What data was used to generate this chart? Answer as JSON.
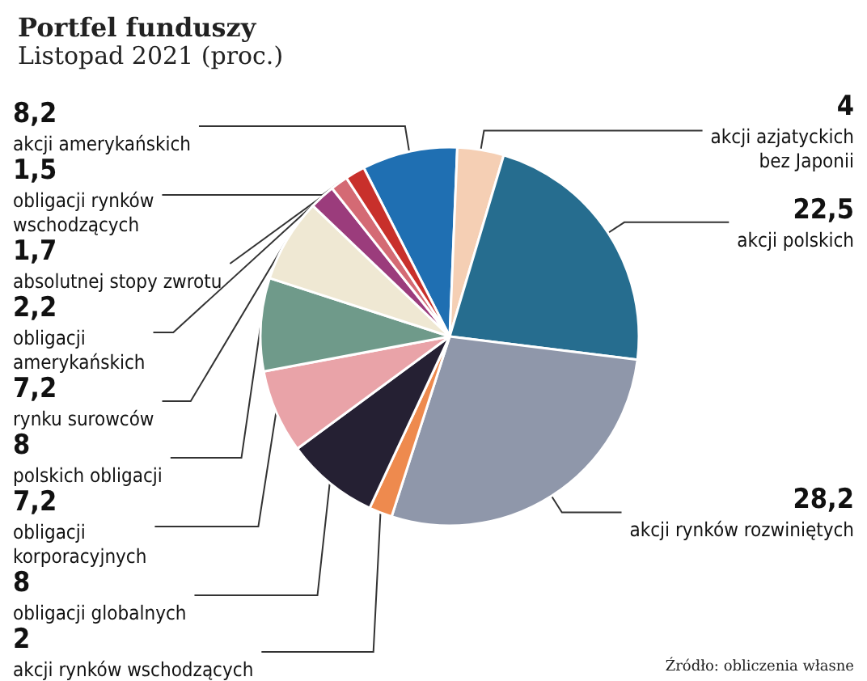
{
  "chart_data": {
    "type": "pie",
    "title": "Portfel funduszy",
    "subtitle": "Listopad 2021 (proc.)",
    "categories": [
      "akcji amerykańskich",
      "akcji azjatyckich\nbez Japonii",
      "akcji polskich",
      "akcji rynków rozwiniętych",
      "akcji rynków wschodzących",
      "obligacji globalnych",
      "obligacji\nkorporacyjnych",
      "polskich obligacji",
      "rynku surowców",
      "obligacji\namerykańskich",
      "obligacji rynków\nwschodzących",
      "absolutnej stopy zwrotu"
    ],
    "values": [
      8.2,
      4,
      22.5,
      28.2,
      2,
      8,
      7.2,
      8,
      7.2,
      2.2,
      1.5,
      1.7
    ],
    "value_labels": [
      "8,2",
      "4",
      "22,5",
      "28,2",
      "2",
      "8",
      "7,2",
      "8",
      "7,2",
      "2,2",
      "1,5",
      "1,7"
    ],
    "colors": [
      "#1f6fb2",
      "#f5cfb4",
      "#266d8f",
      "#8f97aa",
      "#ee8a4e",
      "#252033",
      "#e9a3a8",
      "#6f9a8a",
      "#efe8d3",
      "#9b3c7c",
      "#d46a74",
      "#c8302b"
    ],
    "legend": false,
    "annotations": [
      "Źródło: obliczenia własne"
    ]
  }
}
